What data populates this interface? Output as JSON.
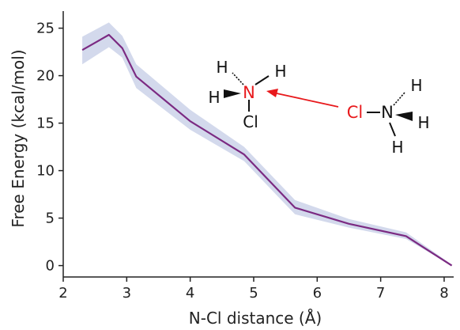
{
  "chart_data": {
    "type": "line",
    "title": "",
    "xlabel": "N-Cl distance (Å)",
    "ylabel": "Free Energy (kcal/mol)",
    "xlim": [
      2.0,
      8.15
    ],
    "ylim": [
      -1.2,
      26.8
    ],
    "xticks": [
      2,
      3,
      4,
      5,
      6,
      7,
      8
    ],
    "yticks": [
      0,
      5,
      10,
      15,
      20,
      25
    ],
    "grid": false,
    "series": [
      {
        "x": [
          2.3,
          2.72,
          2.93,
          3.15,
          4.0,
          4.85,
          5.65,
          6.5,
          7.4,
          8.12
        ],
        "y": [
          22.7,
          24.3,
          22.9,
          19.9,
          15.2,
          11.7,
          6.1,
          4.4,
          3.1,
          0.0
        ],
        "lower": [
          21.2,
          23.0,
          21.9,
          18.7,
          14.3,
          11.0,
          5.4,
          4.0,
          2.8,
          0.0
        ],
        "upper": [
          24.1,
          25.6,
          24.2,
          21.2,
          16.4,
          12.5,
          6.9,
          4.9,
          3.5,
          0.1
        ],
        "line_color": "#7b2a82",
        "band_color": "#d3d9ec"
      }
    ]
  },
  "colors": {
    "axis": "#222222",
    "atom_red": "#e8191c",
    "atom_black": "#111111",
    "arrow": "#e8191c"
  },
  "molecule": {
    "left": {
      "n": "N",
      "h_top_left": "H",
      "h_top_right": "H",
      "h_wedge": "H",
      "cl": "Cl"
    },
    "right": {
      "cl": "Cl",
      "n": "N",
      "h_top": "H",
      "h_wedge": "H",
      "h_bottom": "H"
    }
  }
}
